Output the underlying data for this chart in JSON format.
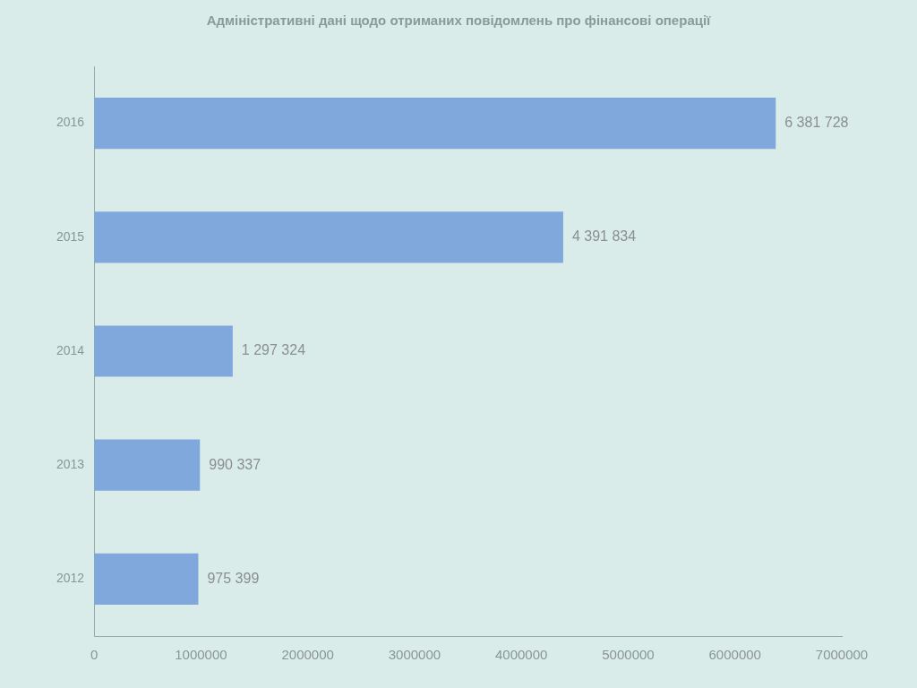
{
  "chart_data": {
    "type": "bar",
    "orientation": "horizontal",
    "title": "Адміністративні дані щодо отриманих повідомлень про фінансові операції",
    "categories": [
      "2016",
      "2015",
      "2014",
      "2013",
      "2012"
    ],
    "values": [
      6381728,
      4391834,
      1297324,
      990337,
      975399
    ],
    "value_labels": [
      "6 381 728",
      "4 391 834",
      "1 297 324",
      "990 337",
      "975 399"
    ],
    "color": "#80a8dc",
    "xlim": [
      0,
      7000000
    ],
    "xticks": [
      0,
      1000000,
      2000000,
      3000000,
      4000000,
      5000000,
      6000000,
      7000000
    ],
    "grid": false,
    "legend": false
  }
}
